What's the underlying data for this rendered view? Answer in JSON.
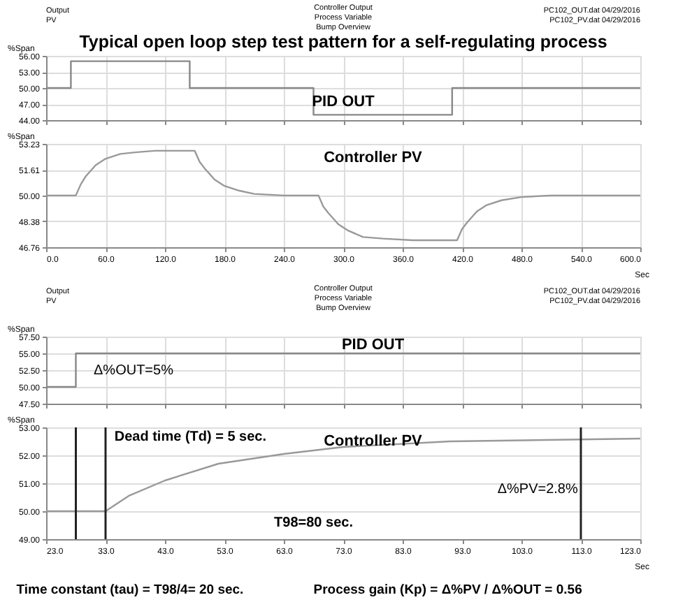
{
  "chart_data": [
    {
      "type": "step",
      "title": "Typical open loop step test pattern for a self-regulating process",
      "ylabel": "%Span",
      "annotations": [
        "Output",
        "PV",
        "Controller Output",
        "Process Variable",
        "Bump Overview",
        "PC102_OUT.dat  04/29/2016",
        "PC102_PV.dat  04/29/2016",
        "PID OUT"
      ],
      "x": [
        0,
        25,
        145,
        270,
        410,
        600
      ],
      "series": [
        {
          "color": "#888888",
          "values": [
            50,
            55,
            50,
            45,
            50,
            50
          ]
        }
      ],
      "xlim": [
        0,
        600
      ],
      "xticks": [
        {
          "value": 0,
          "label": null
        },
        {
          "value": 60,
          "label": null
        },
        {
          "value": 120,
          "label": null
        },
        {
          "value": 180,
          "label": null
        },
        {
          "value": 240,
          "label": null
        },
        {
          "value": 300,
          "label": null
        },
        {
          "value": 360,
          "label": null
        },
        {
          "value": 420,
          "label": null
        },
        {
          "value": 480,
          "label": null
        },
        {
          "value": 540,
          "label": null
        },
        {
          "value": 600,
          "label": null
        }
      ],
      "ylim": [
        44,
        56
      ],
      "yticks": [
        {
          "value": 44,
          "label": "44.00"
        },
        {
          "value": 47,
          "label": "47.00"
        },
        {
          "value": 50,
          "label": "50.00"
        },
        {
          "value": 53,
          "label": "53.00"
        },
        {
          "value": 56,
          "label": "56.00"
        }
      ],
      "tick_labels": "y",
      "grid": true,
      "marker": "none",
      "line_style": "solid"
    },
    {
      "type": "line",
      "title": "Controller PV",
      "ylabel": "%Span",
      "xlabel": "Sec",
      "x": [
        0,
        30,
        35,
        40,
        50,
        60,
        75,
        90,
        110,
        150,
        155,
        160,
        170,
        180,
        195,
        210,
        240,
        275,
        280,
        285,
        295,
        305,
        320,
        340,
        370,
        415,
        420,
        425,
        435,
        445,
        460,
        480,
        510,
        600
      ],
      "series": [
        {
          "color": "#999999",
          "values": [
            50,
            50,
            50.7,
            51.2,
            51.9,
            52.3,
            52.6,
            52.7,
            52.8,
            52.8,
            52.1,
            51.7,
            51.0,
            50.6,
            50.3,
            50.1,
            50.0,
            50,
            49.3,
            48.9,
            48.2,
            47.8,
            47.4,
            47.3,
            47.2,
            47.2,
            47.9,
            48.3,
            49.0,
            49.4,
            49.7,
            49.9,
            50.0,
            50
          ]
        }
      ],
      "xlim": [
        0,
        600
      ],
      "xticks": [
        {
          "value": 0,
          "label": "0.0"
        },
        {
          "value": 60,
          "label": "60.0"
        },
        {
          "value": 120,
          "label": "120.0"
        },
        {
          "value": 180,
          "label": "180.0"
        },
        {
          "value": 240,
          "label": "240.0"
        },
        {
          "value": 300,
          "label": "300.0"
        },
        {
          "value": 360,
          "label": "360.0"
        },
        {
          "value": 420,
          "label": "420.0"
        },
        {
          "value": 480,
          "label": "480.0"
        },
        {
          "value": 540,
          "label": "540.0"
        },
        {
          "value": 600,
          "label": "600.0"
        }
      ],
      "ylim": [
        46.76,
        53.23
      ],
      "yticks": [
        46.76,
        48.38,
        {
          "value": 50,
          "label": "50.00"
        },
        51.61,
        53.23
      ],
      "grid": true,
      "marker": "none",
      "line_style": "solid"
    },
    {
      "type": "step",
      "title": "PID OUT",
      "ylabel": "%Span",
      "annotations": [
        "Output",
        "PV",
        "Controller Output",
        "Process Variable",
        "Bump Overview",
        "PC102_OUT.dat  04/29/2016",
        "PC102_PV.dat  04/29/2016",
        "Δ%OUT=5%"
      ],
      "x": [
        23,
        28,
        123
      ],
      "series": [
        {
          "color": "#888888",
          "values": [
            50,
            55,
            55
          ]
        }
      ],
      "xlim": [
        23,
        123
      ],
      "xticks": [
        {
          "value": 23,
          "label": null
        },
        {
          "value": 33,
          "label": null
        },
        {
          "value": 43,
          "label": null
        },
        {
          "value": 53,
          "label": null
        },
        {
          "value": 63,
          "label": null
        },
        {
          "value": 73,
          "label": null
        },
        {
          "value": 83,
          "label": null
        },
        {
          "value": 93,
          "label": null
        },
        {
          "value": 103,
          "label": null
        },
        {
          "value": 113,
          "label": null
        },
        {
          "value": 123,
          "label": null
        }
      ],
      "ylim": [
        47.5,
        57.5
      ],
      "yticks": [
        {
          "value": 47.5,
          "label": "47.50"
        },
        {
          "value": 50,
          "label": "50.00"
        },
        {
          "value": 52.5,
          "label": "52.50"
        },
        {
          "value": 55,
          "label": "55.00"
        },
        {
          "value": 57.5,
          "label": "57.50"
        }
      ],
      "tick_labels": "y",
      "grid": true,
      "marker": "none",
      "line_style": "solid"
    },
    {
      "type": "line",
      "title": "Controller PV",
      "ylabel": "%Span",
      "xlabel": "Sec",
      "annotations": [
        "Time constant (tau) = T98/4= 20 sec.",
        "Process gain (Kp) = Δ%PV / Δ%OUT = 0.56",
        "Dead time (Td) = 5 sec.",
        "T98=80 sec.",
        "Δ%PV=2.8%"
      ],
      "x": [
        23,
        33,
        37,
        43,
        52,
        63,
        73,
        91,
        123
      ],
      "series": [
        {
          "color": "#999999",
          "values": [
            50,
            50,
            50.56,
            51.1,
            51.7,
            52.05,
            52.3,
            52.5,
            52.6
          ]
        }
      ],
      "ref_lines": [
        {
          "axis": "x",
          "value": 28,
          "color": "#222222"
        },
        {
          "axis": "x",
          "value": 33,
          "color": "#222222"
        },
        {
          "axis": "x",
          "value": 113,
          "color": "#222222"
        }
      ],
      "xlim": [
        23,
        123
      ],
      "xticks": [
        {
          "value": 23,
          "label": "23.0"
        },
        {
          "value": 33,
          "label": "33.0"
        },
        {
          "value": 43,
          "label": "43.0"
        },
        {
          "value": 53,
          "label": "53.0"
        },
        {
          "value": 63,
          "label": "63.0"
        },
        {
          "value": 73,
          "label": "73.0"
        },
        {
          "value": 83,
          "label": "83.0"
        },
        {
          "value": 93,
          "label": "93.0"
        },
        {
          "value": 103,
          "label": "103.0"
        },
        {
          "value": 113,
          "label": "113.0"
        },
        {
          "value": 123,
          "label": "123.0"
        }
      ],
      "ylim": [
        49,
        53
      ],
      "yticks": [
        {
          "value": 49,
          "label": "49.00"
        },
        {
          "value": 50,
          "label": "50.00"
        },
        {
          "value": 51,
          "label": "51.00"
        },
        {
          "value": 52,
          "label": "52.00"
        },
        {
          "value": 53,
          "label": "53.00"
        }
      ],
      "grid": "y",
      "marker": "none",
      "line_style": "solid"
    }
  ]
}
